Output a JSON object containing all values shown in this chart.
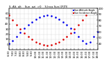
{
  "title": "S. Alt. alt    Sun  azi  >0    S.Inca Sun.I[PJTE",
  "bg_color": "#ffffff",
  "grid_color": "#bbbbbb",
  "blue_color": "#0000ee",
  "red_color": "#dd0000",
  "blue_label": "Sun Altitude Angle",
  "red_label": "Sun Incidence Angle",
  "x_times": [
    390,
    420,
    450,
    480,
    510,
    540,
    570,
    600,
    630,
    660,
    690,
    720,
    750,
    780,
    810,
    840,
    870,
    900,
    930,
    960,
    990,
    1020,
    1050,
    1080
  ],
  "sun_alt": [
    2,
    8,
    16,
    24,
    31,
    38,
    44,
    49,
    53,
    56,
    57,
    56,
    53,
    49,
    44,
    38,
    31,
    24,
    16,
    8,
    2,
    5,
    15,
    25
  ],
  "sun_inc": [
    88,
    80,
    72,
    65,
    58,
    52,
    47,
    43,
    40,
    38,
    37,
    38,
    40,
    43,
    47,
    52,
    58,
    65,
    72,
    80,
    88,
    90,
    90,
    90
  ],
  "blue_visible": [
    true,
    true,
    true,
    true,
    true,
    true,
    true,
    true,
    true,
    true,
    true,
    true,
    true,
    true,
    true,
    true,
    true,
    true,
    true,
    true,
    true,
    true,
    true,
    true
  ],
  "red_visible": [
    true,
    true,
    true,
    true,
    true,
    true,
    true,
    true,
    true,
    true,
    true,
    true,
    true,
    true,
    true,
    true,
    true,
    true,
    true,
    true,
    true,
    false,
    false,
    false
  ],
  "ylim_left": [
    -10,
    70
  ],
  "ylim_right": [
    30,
    100
  ],
  "yticks_left": [
    0,
    10,
    20,
    30,
    40,
    50,
    60
  ],
  "yticks_right": [
    40,
    50,
    60,
    70,
    80,
    90,
    100
  ],
  "xlim": [
    390,
    1080
  ],
  "xtick_positions": [
    390,
    420,
    450,
    480,
    510,
    540,
    570,
    600,
    630,
    660,
    690,
    720,
    750,
    780,
    810,
    840,
    870,
    900,
    930,
    960,
    990,
    1020,
    1050,
    1080
  ],
  "xtick_labels": [
    "6:30",
    "7:00",
    "7:30",
    "8:00",
    "8:30",
    "9:00",
    "9:30",
    "10:00",
    "10:30",
    "11:00",
    "11:30",
    "12:00",
    "12:30",
    "13:00",
    "13:30",
    "14:00",
    "14:30",
    "15:00",
    "15:30",
    "16:00",
    "16:30",
    "17:00",
    "17:30",
    "18:00"
  ]
}
